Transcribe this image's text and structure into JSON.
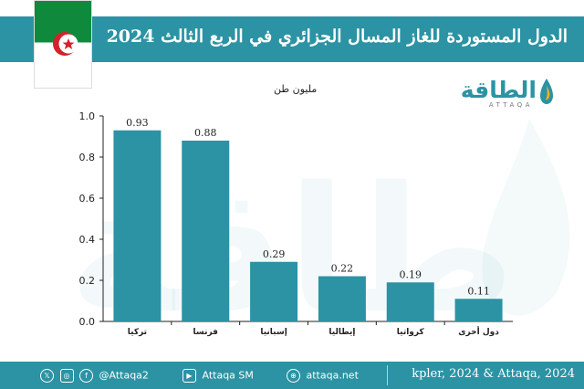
{
  "title": "الدول المستوردة للغاز المسال الجزائري في الربع الثالث 2024",
  "unit_label": "مليون طن",
  "logo": {
    "arabic": "الطاقة",
    "latin": "ATTAQA"
  },
  "colors": {
    "accent": "#2b93a4",
    "bar": "#2b93a4",
    "flag_green": "#0f8a3d",
    "flag_red": "#d2232a"
  },
  "chart_data": {
    "type": "bar",
    "title": "الدول المستوردة للغاز المسال الجزائري في الربع الثالث 2024",
    "ylabel": "مليون طن",
    "categories": [
      "تركيا",
      "فرنسا",
      "إسبانيا",
      "إيطاليا",
      "كرواتيا",
      "دول أخرى"
    ],
    "values": [
      0.93,
      0.88,
      0.29,
      0.22,
      0.19,
      0.11
    ],
    "value_labels": [
      "0.93",
      "0.88",
      "0.29",
      "0.22",
      "0.19",
      "0.11"
    ],
    "ylim": [
      0,
      1.0
    ],
    "yticks": [
      "0.0",
      "0.2",
      "0.4",
      "0.6",
      "0.8",
      "1.0"
    ],
    "grid": false,
    "legend": "none"
  },
  "footer": {
    "social_handle": "@Attaqa2",
    "youtube": "Attaqa SM",
    "website": "attaqa.net",
    "source": "kpler, 2024 & Attaqa, 2024",
    "icons": [
      "x-icon",
      "instagram-icon",
      "facebook-icon",
      "youtube-icon",
      "globe-icon"
    ]
  }
}
